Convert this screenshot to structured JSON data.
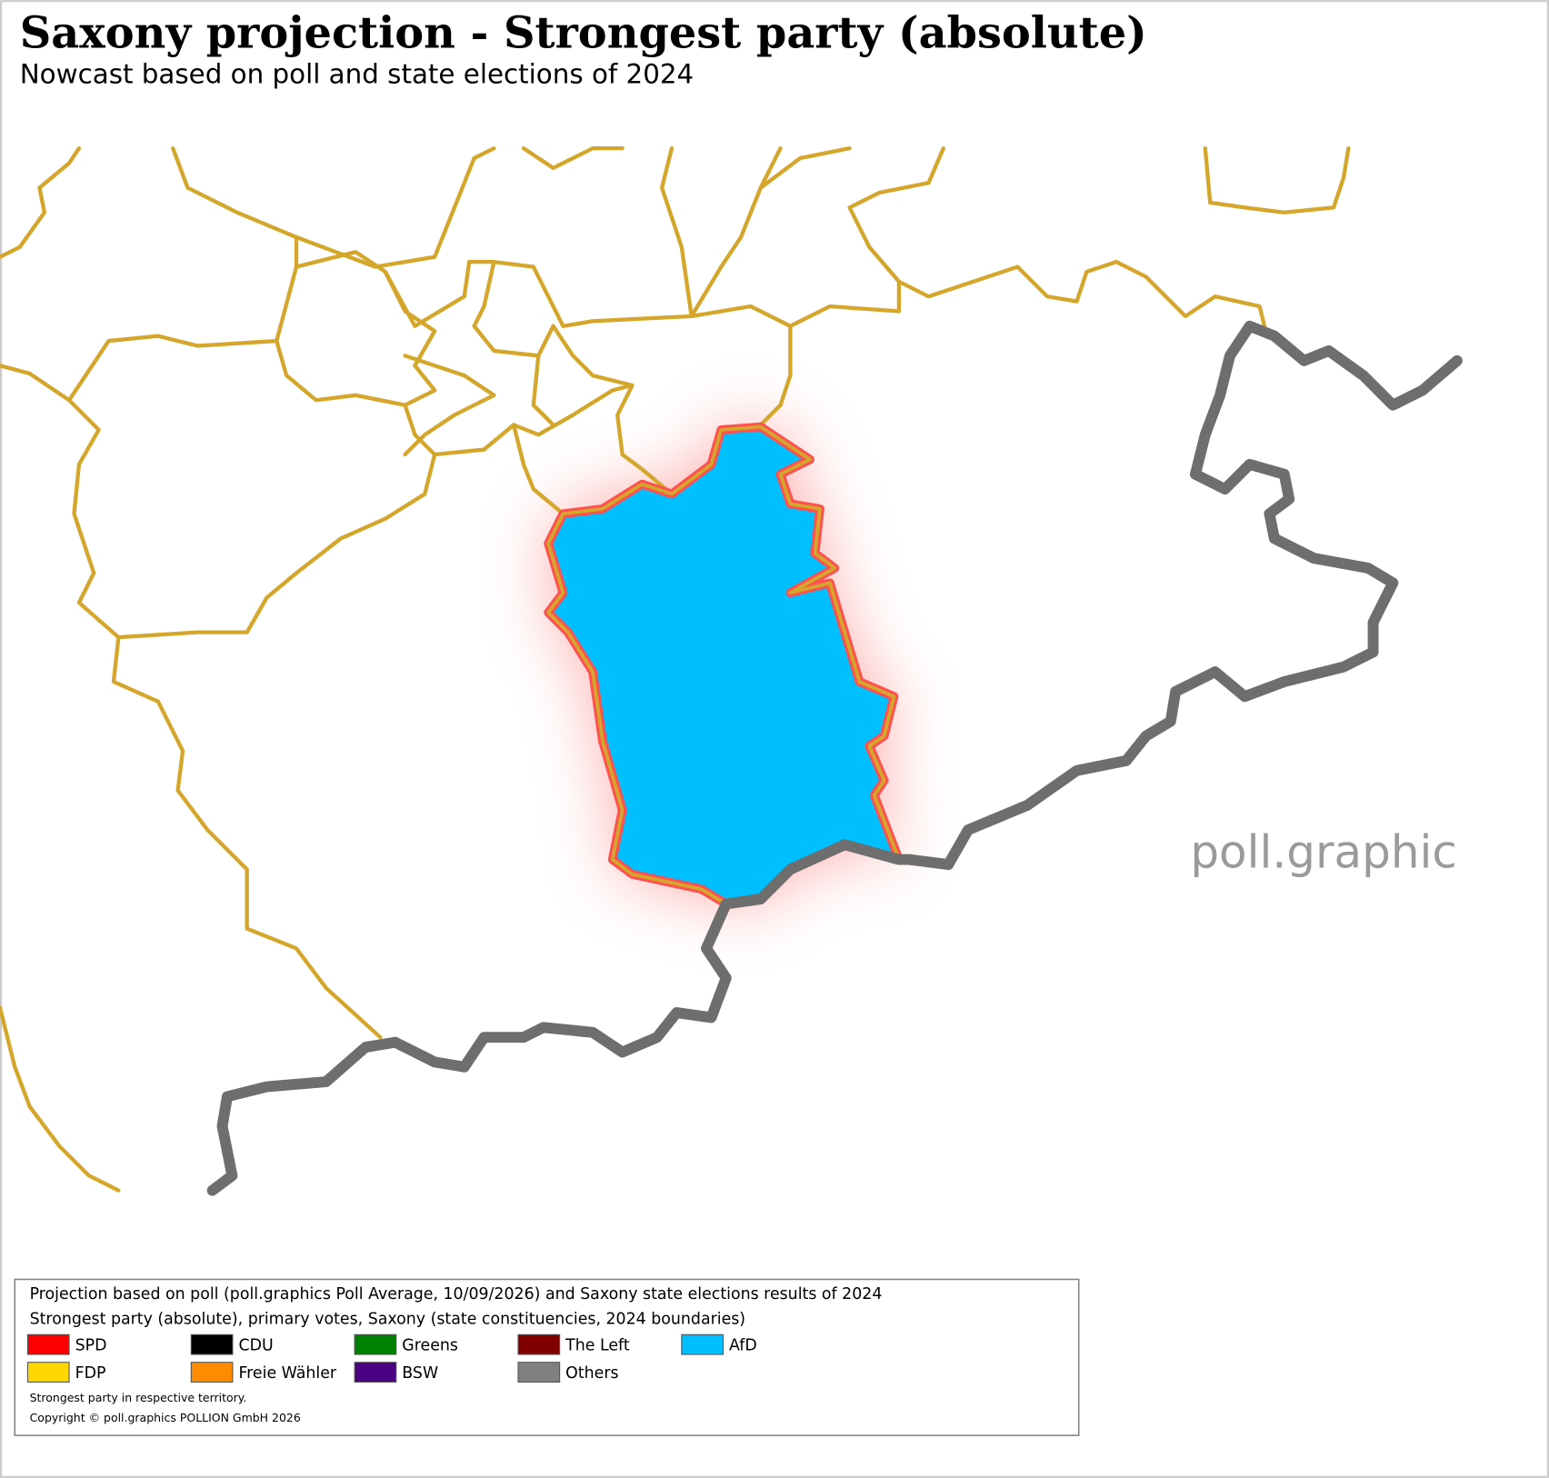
{
  "title": "Saxony projection - Strongest party (absolute)",
  "subtitle": "Nowcast based on poll and state elections of 2024",
  "watermark": "poll.graphic",
  "legend": {
    "lines": [
      "Projection based on poll (poll.graphics Poll Average, 10/09/2026) and Saxony state elections results of 2024",
      "Strongest party (absolute), primary votes, Saxony (state constituencies, 2024 boundaries)"
    ],
    "items": [
      {
        "label": "SPD",
        "color": "#ff0000"
      },
      {
        "label": "CDU",
        "color": "#000000"
      },
      {
        "label": "Greens",
        "color": "#008000"
      },
      {
        "label": "The Left",
        "color": "#800000"
      },
      {
        "label": "AfD",
        "color": "#00bfff"
      },
      {
        "label": "FDP",
        "color": "#ffd700"
      },
      {
        "label": "Freie Wähler",
        "color": "#ff8c00"
      },
      {
        "label": "BSW",
        "color": "#4b0082"
      },
      {
        "label": "Others",
        "color": "#808080"
      }
    ],
    "notes": [
      "Strongest party in respective territory.",
      "Copyright © poll.graphics POLLION GmbH 2026"
    ]
  }
}
